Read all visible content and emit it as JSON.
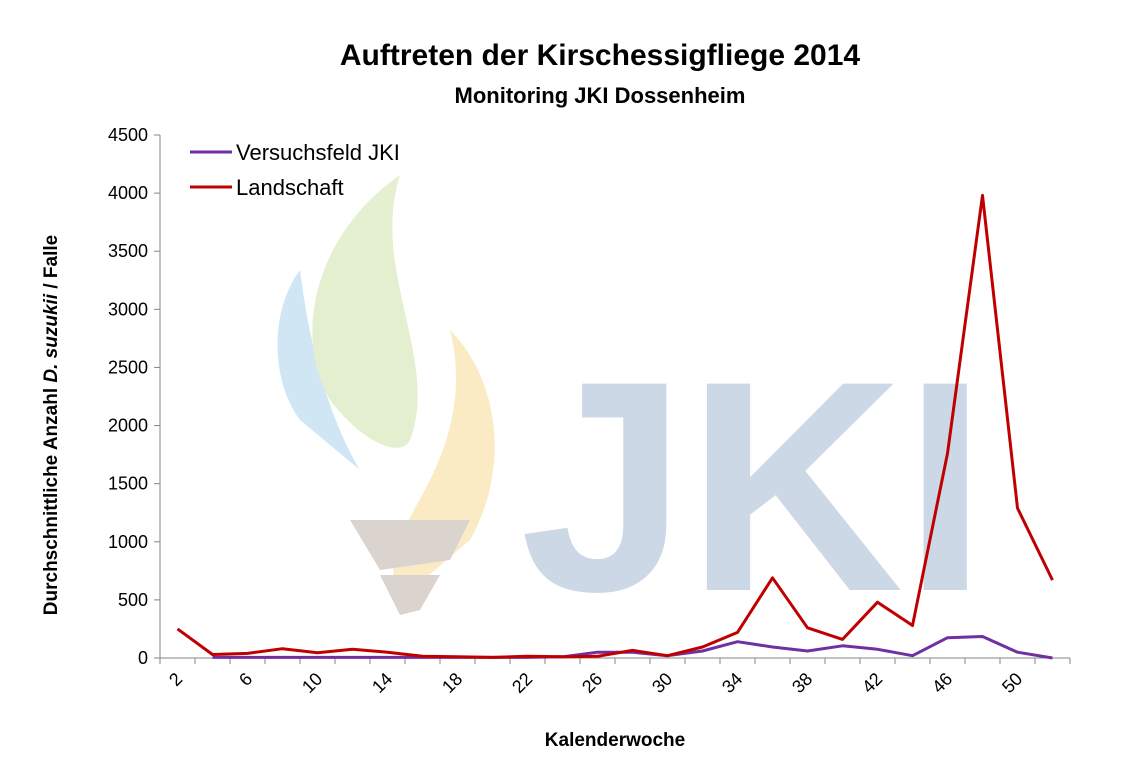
{
  "chart_data": {
    "type": "line",
    "title": "Auftreten der Kirschessigfliege 2014",
    "subtitle": "Monitoring JKI Dossenheim",
    "xlabel": "Kalenderwoche",
    "ylabel_pre": "Durchschnittliche Anzahl ",
    "ylabel_em": "D. suzukii",
    "ylabel_post": " / Falle",
    "ylim": [
      0,
      4500
    ],
    "yticks": [
      0,
      500,
      1000,
      1500,
      2000,
      2500,
      3000,
      3500,
      4000,
      4500
    ],
    "x": [
      2,
      4,
      6,
      8,
      10,
      12,
      14,
      16,
      18,
      20,
      22,
      24,
      26,
      28,
      30,
      32,
      34,
      36,
      38,
      40,
      42,
      44,
      46,
      48,
      50,
      52
    ],
    "xtick_labels": [
      "2",
      "6",
      "10",
      "14",
      "18",
      "22",
      "26",
      "30",
      "34",
      "38",
      "42",
      "46",
      "50"
    ],
    "legend_position": "top-left",
    "watermark": "JKI",
    "series": [
      {
        "name": "Versuchsfeld JKI",
        "color": "#7030a0",
        "values": [
          null,
          5,
          5,
          5,
          5,
          5,
          5,
          5,
          5,
          5,
          5,
          10,
          50,
          50,
          20,
          60,
          140,
          95,
          60,
          105,
          75,
          20,
          175,
          185,
          50,
          0
        ]
      },
      {
        "name": "Landschaft",
        "color": "#c00000",
        "values": [
          250,
          30,
          40,
          80,
          45,
          75,
          50,
          15,
          10,
          5,
          15,
          10,
          15,
          65,
          20,
          95,
          220,
          690,
          260,
          160,
          480,
          280,
          1760,
          3980,
          1290,
          670
        ]
      }
    ]
  }
}
